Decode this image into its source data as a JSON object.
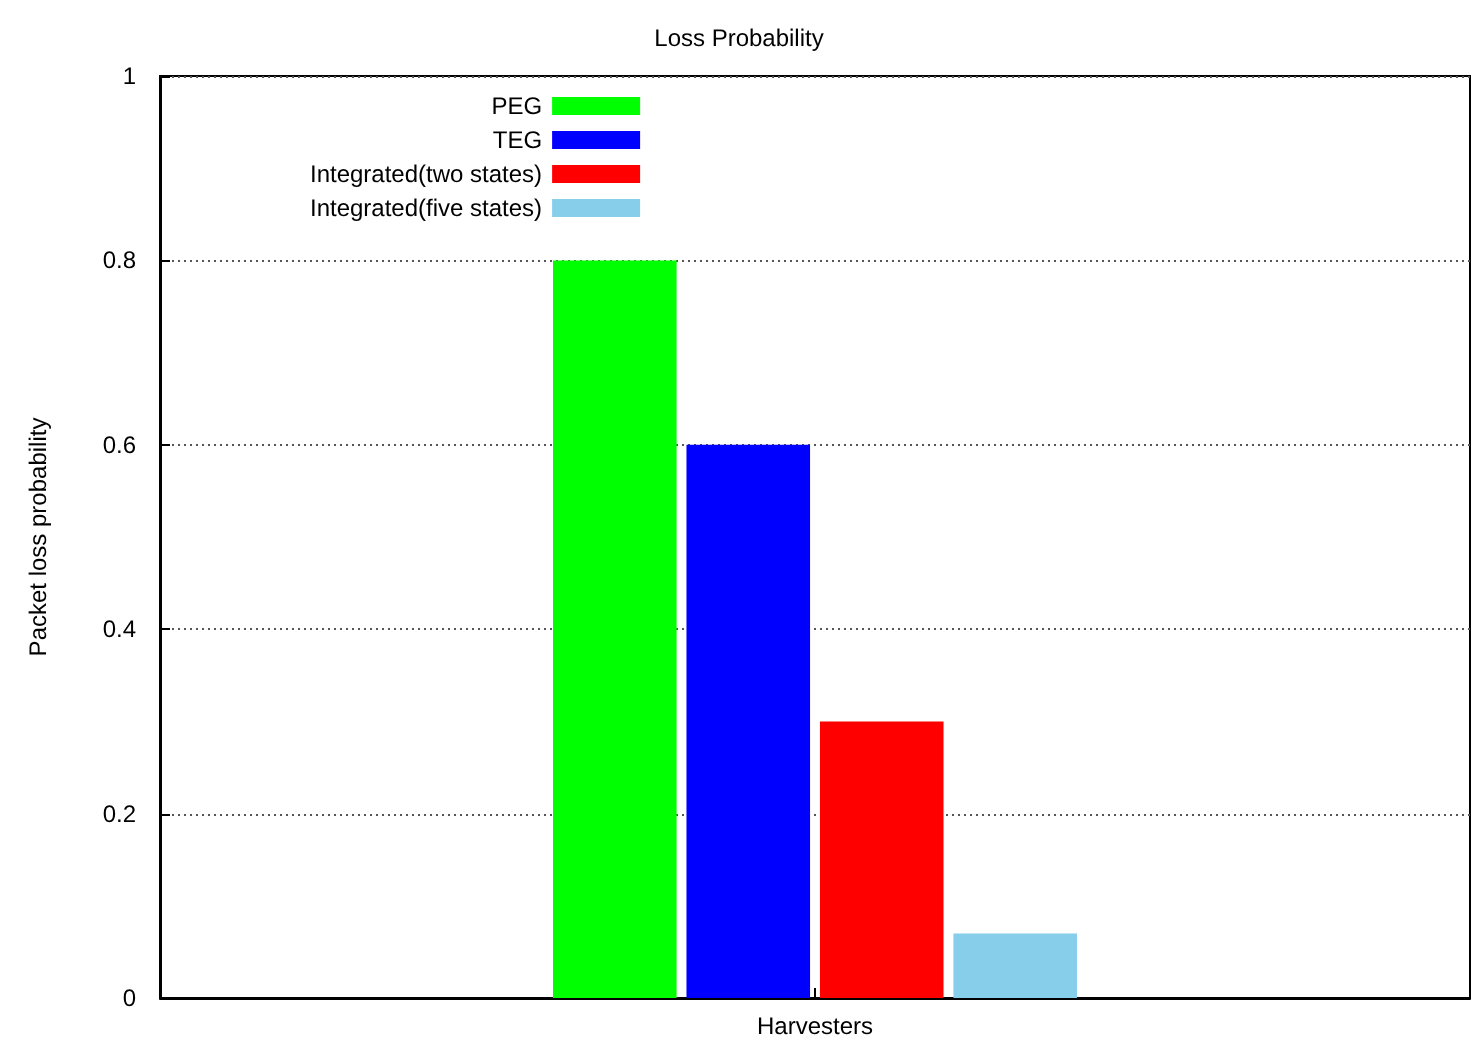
{
  "chart_data": {
    "type": "bar",
    "title": "Loss Probability",
    "xlabel": "Harvesters",
    "ylabel": "Packet loss probability",
    "categories": [
      null
    ],
    "series": [
      {
        "name": "PEG",
        "color": "#00ff00",
        "values": [
          0.8
        ]
      },
      {
        "name": "TEG",
        "color": "#0000ff",
        "values": [
          0.6
        ]
      },
      {
        "name": "Integrated(two states)",
        "color": "#ff0000",
        "values": [
          0.3
        ]
      },
      {
        "name": "Integrated(five states)",
        "color": "#87ceeb",
        "values": [
          0.07
        ]
      }
    ],
    "ylim": [
      0,
      1
    ],
    "yticks": [
      0,
      0.2,
      0.4,
      0.6,
      0.8,
      1
    ],
    "grid": "y",
    "legend": "top",
    "tick_labels": "y"
  }
}
